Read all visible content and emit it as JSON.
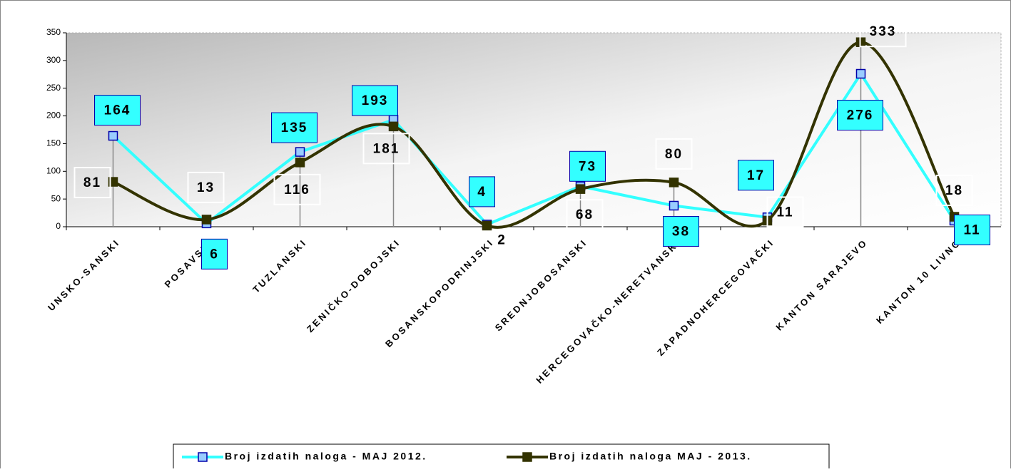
{
  "chart_data": {
    "type": "line",
    "categories": [
      "UNSKO-SANSKI",
      "POSAVSKI",
      "TUZLANSKI",
      "ZENIČKO-DOBOJSKI",
      "BOSANSKOPODRINJSKI",
      "SREDNJOBOSANSKI",
      "HERCEGOVAČKO-NERETVANSKI",
      "ZAPADNOHERCEGOVAČKI",
      "KANTON SARAJEVO",
      "KANTON 10 LIVNO"
    ],
    "series": [
      {
        "name": "Broj izdatih naloga -  MAJ 2012.",
        "color": "#33ffff",
        "marker_color": "#99ccff",
        "values": [
          164,
          6,
          135,
          193,
          4,
          73,
          38,
          17,
          276,
          11
        ],
        "smooth": false
      },
      {
        "name": "Broj izdatih naloga  MAJ - 2013.",
        "color": "#333300",
        "marker_color": "#333300",
        "values": [
          81,
          13,
          116,
          181,
          2,
          68,
          80,
          11,
          333,
          18
        ],
        "smooth": true
      }
    ],
    "ylim": [
      0,
      350
    ],
    "yticks": [
      0,
      50,
      100,
      150,
      200,
      250,
      300,
      350
    ],
    "legend": "bottom"
  }
}
